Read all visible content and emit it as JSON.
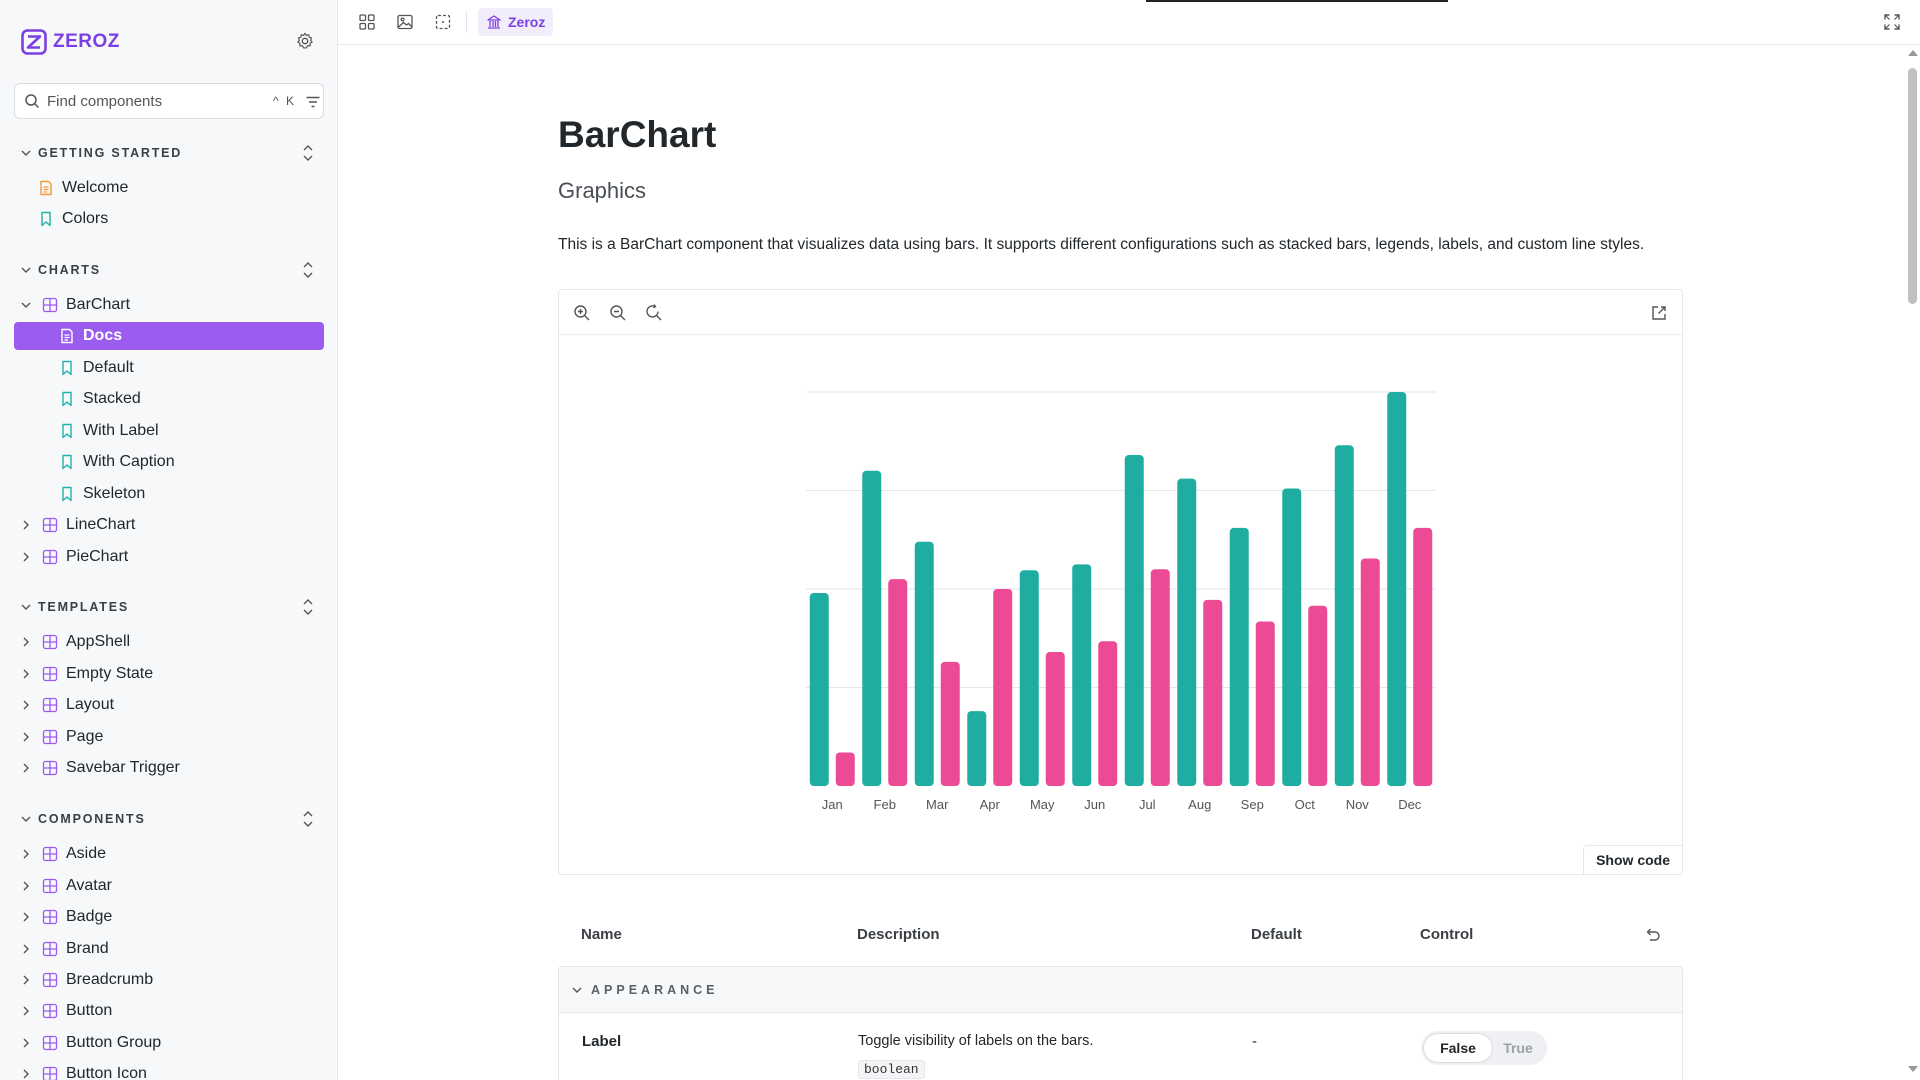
{
  "brand": {
    "name": "ZEROZ",
    "accent": "#7b3fe4"
  },
  "search": {
    "placeholder": "Find components",
    "shortcut": "^ K"
  },
  "sidebar": {
    "sections": [
      {
        "label": "GETTING STARTED",
        "items": [
          {
            "label": "Welcome",
            "icon": "document-icon"
          },
          {
            "label": "Colors",
            "icon": "bookmark-icon"
          }
        ]
      },
      {
        "label": "CHARTS",
        "items": [
          {
            "label": "BarChart",
            "icon": "component-icon",
            "expanded": true
          },
          {
            "label": "Docs",
            "icon": "document-icon",
            "active": true
          },
          {
            "label": "Default",
            "icon": "bookmark-icon"
          },
          {
            "label": "Stacked",
            "icon": "bookmark-icon"
          },
          {
            "label": "With Label",
            "icon": "bookmark-icon"
          },
          {
            "label": "With Caption",
            "icon": "bookmark-icon"
          },
          {
            "label": "Skeleton",
            "icon": "bookmark-icon"
          },
          {
            "label": "LineChart",
            "icon": "component-icon"
          },
          {
            "label": "PieChart",
            "icon": "component-icon"
          }
        ]
      },
      {
        "label": "TEMPLATES",
        "items": [
          {
            "label": "AppShell"
          },
          {
            "label": "Empty State"
          },
          {
            "label": "Layout"
          },
          {
            "label": "Page"
          },
          {
            "label": "Savebar Trigger"
          }
        ]
      },
      {
        "label": "COMPONENTS",
        "items": [
          {
            "label": "Aside"
          },
          {
            "label": "Avatar"
          },
          {
            "label": "Badge"
          },
          {
            "label": "Brand"
          },
          {
            "label": "Breadcrumb"
          },
          {
            "label": "Button"
          },
          {
            "label": "Button Group"
          },
          {
            "label": "Button Icon"
          }
        ]
      }
    ]
  },
  "toolbar": {
    "tab_label": "Zeroz"
  },
  "doc": {
    "title": "BarChart",
    "subtitle": "Graphics",
    "description": "This is a BarChart component that visualizes data using bars. It supports different configurations such as stacked bars, legends, labels, and custom line styles.",
    "show_code": "Show code"
  },
  "chart_data": {
    "type": "bar",
    "categories": [
      "Jan",
      "Feb",
      "Mar",
      "Apr",
      "May",
      "Jun",
      "Jul",
      "Aug",
      "Sep",
      "Oct",
      "Nov",
      "Dec"
    ],
    "series": [
      {
        "color": "#20ada1",
        "values": [
          196,
          320,
          248,
          76,
          219,
          225,
          336,
          312,
          262,
          302,
          346,
          400
        ]
      },
      {
        "color": "#ec4a94",
        "values": [
          34,
          210,
          126,
          200,
          136,
          147,
          220,
          189,
          167,
          183,
          231,
          262
        ]
      }
    ],
    "ylim": [
      0,
      400
    ],
    "grid": true,
    "legend": "none",
    "title": "",
    "xlabel": "",
    "ylabel": ""
  },
  "args_table": {
    "headers": {
      "name": "Name",
      "description": "Description",
      "default": "Default",
      "control": "Control"
    },
    "group": "APPEARANCE",
    "rows": [
      {
        "name": "Label",
        "description": "Toggle visibility of labels on the bars.",
        "type": "boolean",
        "default": "-",
        "options": [
          "False",
          "True"
        ],
        "selected": "False"
      }
    ]
  }
}
